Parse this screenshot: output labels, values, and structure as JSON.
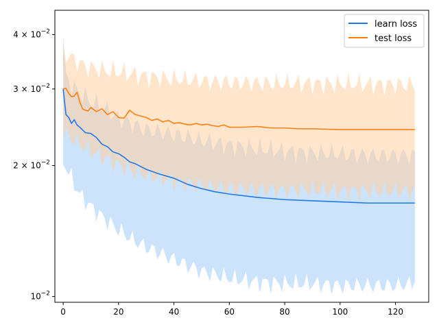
{
  "chart_data": {
    "type": "line",
    "title": "",
    "xlabel": "",
    "ylabel": "",
    "xlim": [
      -3,
      132
    ],
    "ylim": [
      0.0097,
      0.0455
    ],
    "yscale": "log",
    "x_ticks": [
      0,
      20,
      40,
      60,
      80,
      100,
      120
    ],
    "y_ticks": [
      {
        "value": 0.01,
        "mantissa": "10",
        "exponent": "−2"
      },
      {
        "value": 0.02,
        "mantissa": "2 × 10",
        "exponent": "−2"
      },
      {
        "value": 0.03,
        "mantissa": "3 × 10",
        "exponent": "−2"
      },
      {
        "value": 0.04,
        "mantissa": "4 × 10",
        "exponent": "−2"
      }
    ],
    "grid": false,
    "legend_position": "top-right",
    "series": [
      {
        "name": "learn loss",
        "color": "#1f77e8",
        "band_color": "#a8d0f8",
        "band_opacity": 0.6,
        "points": [
          [
            0,
            0.03
          ],
          [
            1,
            0.0262
          ],
          [
            2,
            0.0258
          ],
          [
            3,
            0.025
          ],
          [
            4,
            0.0255
          ],
          [
            5,
            0.0248
          ],
          [
            6,
            0.0245
          ],
          [
            8,
            0.0238
          ],
          [
            10,
            0.0237
          ],
          [
            12,
            0.0232
          ],
          [
            14,
            0.0224
          ],
          [
            16,
            0.0221
          ],
          [
            18,
            0.0215
          ],
          [
            20,
            0.0213
          ],
          [
            22,
            0.0209
          ],
          [
            24,
            0.0204
          ],
          [
            26,
            0.0202
          ],
          [
            28,
            0.0199
          ],
          [
            30,
            0.0196
          ],
          [
            35,
            0.0191
          ],
          [
            40,
            0.0187
          ],
          [
            45,
            0.0181
          ],
          [
            50,
            0.0177
          ],
          [
            55,
            0.0174
          ],
          [
            60,
            0.0172
          ],
          [
            70,
            0.0169
          ],
          [
            80,
            0.0167
          ],
          [
            90,
            0.0166
          ],
          [
            100,
            0.0165
          ],
          [
            110,
            0.0164
          ],
          [
            127,
            0.0164
          ]
        ],
        "upper": [
          [
            0,
            0.0405
          ],
          [
            1,
            0.0335
          ],
          [
            3,
            0.0318
          ],
          [
            5,
            0.031
          ],
          [
            8,
            0.03
          ],
          [
            10,
            0.0292
          ],
          [
            15,
            0.0282
          ],
          [
            20,
            0.0268
          ],
          [
            25,
            0.026
          ],
          [
            30,
            0.0252
          ],
          [
            40,
            0.0246
          ],
          [
            50,
            0.0238
          ],
          [
            60,
            0.0232
          ],
          [
            70,
            0.0228
          ],
          [
            80,
            0.0225
          ],
          [
            90,
            0.0223
          ],
          [
            100,
            0.0222
          ],
          [
            110,
            0.022
          ],
          [
            127,
            0.022
          ]
        ],
        "lower": [
          [
            0,
            0.0197
          ],
          [
            2,
            0.0185
          ],
          [
            4,
            0.0175
          ],
          [
            6,
            0.0165
          ],
          [
            10,
            0.0155
          ],
          [
            15,
            0.0145
          ],
          [
            20,
            0.0137
          ],
          [
            25,
            0.013
          ],
          [
            30,
            0.0125
          ],
          [
            40,
            0.0117
          ],
          [
            50,
            0.011
          ],
          [
            60,
            0.0106
          ],
          [
            70,
            0.0104
          ],
          [
            80,
            0.0103
          ],
          [
            90,
            0.0103
          ],
          [
            100,
            0.0102
          ],
          [
            110,
            0.0102
          ],
          [
            120,
            0.0102
          ],
          [
            126,
            0.0103
          ],
          [
            127,
            0.0106
          ]
        ]
      },
      {
        "name": "test loss",
        "color": "#ff7f0e",
        "band_color": "#ffcfa0",
        "band_opacity": 0.55,
        "points": [
          [
            0,
            0.03
          ],
          [
            1,
            0.0301
          ],
          [
            2,
            0.0293
          ],
          [
            3,
            0.0288
          ],
          [
            4,
            0.0289
          ],
          [
            5,
            0.0295
          ],
          [
            6,
            0.028
          ],
          [
            7,
            0.027
          ],
          [
            8,
            0.0268
          ],
          [
            9,
            0.0267
          ],
          [
            10,
            0.0272
          ],
          [
            12,
            0.0266
          ],
          [
            14,
            0.027
          ],
          [
            16,
            0.0262
          ],
          [
            18,
            0.0266
          ],
          [
            20,
            0.0258
          ],
          [
            22,
            0.0257
          ],
          [
            24,
            0.0268
          ],
          [
            26,
            0.0262
          ],
          [
            28,
            0.026
          ],
          [
            30,
            0.0258
          ],
          [
            32,
            0.0254
          ],
          [
            34,
            0.0256
          ],
          [
            36,
            0.0252
          ],
          [
            38,
            0.0254
          ],
          [
            40,
            0.025
          ],
          [
            42,
            0.0251
          ],
          [
            44,
            0.0249
          ],
          [
            46,
            0.0248
          ],
          [
            48,
            0.025
          ],
          [
            50,
            0.0248
          ],
          [
            52,
            0.0249
          ],
          [
            54,
            0.0247
          ],
          [
            56,
            0.0246
          ],
          [
            58,
            0.0248
          ],
          [
            60,
            0.0245
          ],
          [
            65,
            0.0245
          ],
          [
            70,
            0.0246
          ],
          [
            75,
            0.0244
          ],
          [
            80,
            0.0244
          ],
          [
            85,
            0.0243
          ],
          [
            90,
            0.0243
          ],
          [
            100,
            0.0242
          ],
          [
            110,
            0.0242
          ],
          [
            120,
            0.0242
          ],
          [
            127,
            0.0242
          ]
        ],
        "upper": [
          [
            0,
            0.038
          ],
          [
            2,
            0.0372
          ],
          [
            5,
            0.0362
          ],
          [
            8,
            0.0352
          ],
          [
            10,
            0.035
          ],
          [
            15,
            0.0345
          ],
          [
            20,
            0.0342
          ],
          [
            25,
            0.0338
          ],
          [
            30,
            0.0334
          ],
          [
            40,
            0.033
          ],
          [
            50,
            0.0326
          ],
          [
            60,
            0.0324
          ],
          [
            70,
            0.0323
          ],
          [
            80,
            0.0322
          ],
          [
            90,
            0.0322
          ],
          [
            100,
            0.0321
          ],
          [
            110,
            0.0321
          ],
          [
            120,
            0.032
          ],
          [
            127,
            0.032
          ]
        ],
        "lower": [
          [
            0,
            0.023
          ],
          [
            3,
            0.0222
          ],
          [
            6,
            0.0215
          ],
          [
            10,
            0.0208
          ],
          [
            15,
            0.02
          ],
          [
            20,
            0.0193
          ],
          [
            25,
            0.0187
          ],
          [
            30,
            0.0183
          ],
          [
            40,
            0.0177
          ],
          [
            50,
            0.0173
          ],
          [
            60,
            0.017
          ],
          [
            70,
            0.0169
          ],
          [
            80,
            0.0169
          ],
          [
            90,
            0.0169
          ],
          [
            100,
            0.0168
          ],
          [
            110,
            0.0168
          ],
          [
            120,
            0.0168
          ],
          [
            127,
            0.0168
          ]
        ]
      }
    ]
  }
}
